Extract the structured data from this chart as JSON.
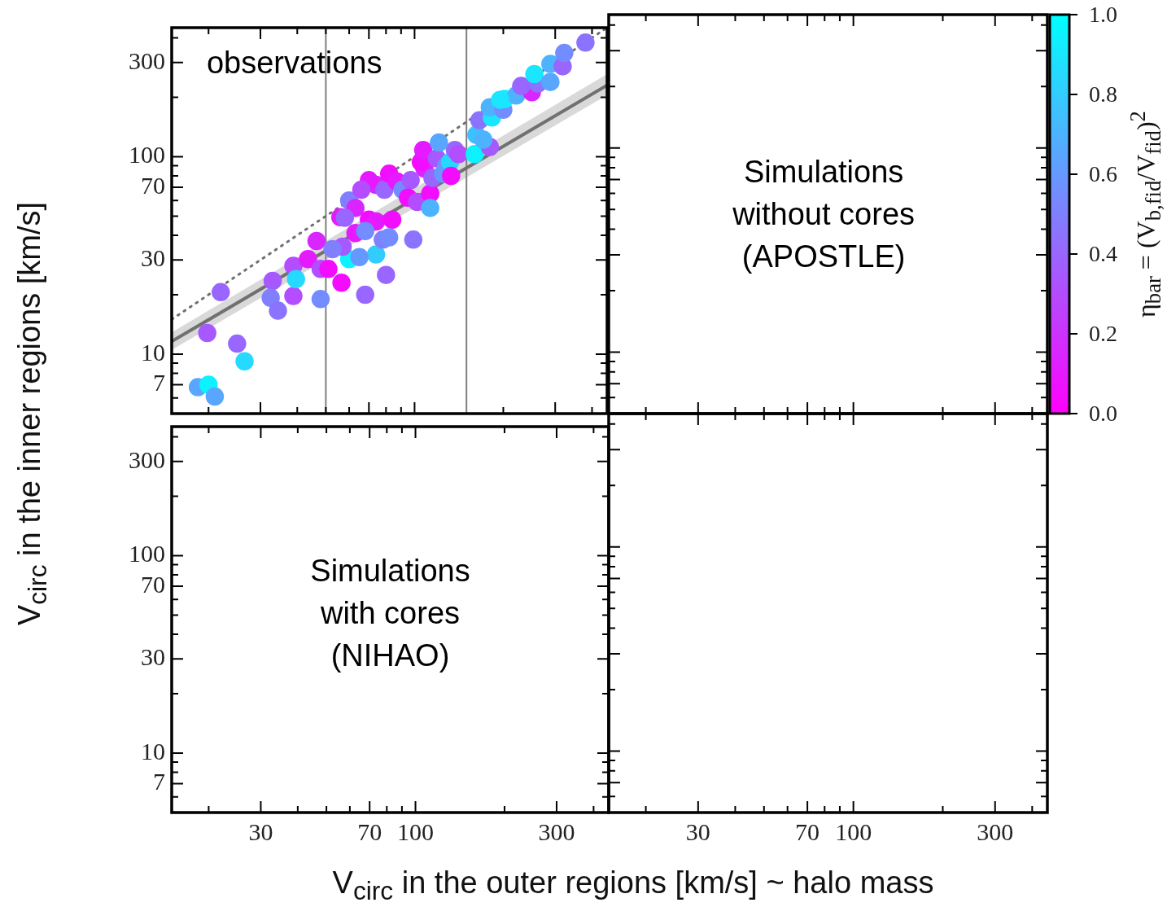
{
  "chart_data": [
    {
      "type": "scatter",
      "ylabel": "V$_{circ}$ in the inner regions [km/s]",
      "clabel": "η$_{bar}$ = (V$_{b,fid}$/V$_{fid}$)$^{2}$",
      "clim": [
        0,
        1
      ],
      "cticks": [
        {
          "value": 0,
          "label": "0.0"
        },
        0.2,
        0.4,
        0.6,
        0.8,
        {
          "value": 1,
          "label": "1.0"
        }
      ],
      "annotations": [
        "observations"
      ],
      "log": "xy",
      "tick_labels": "y",
      "grid": false,
      "xlim": [
        15,
        450
      ],
      "ylim": [
        5,
        450
      ],
      "xticks": [
        {
          "value": 20,
          "label": null
        },
        30,
        {
          "value": 40,
          "label": null
        },
        {
          "value": 50,
          "label": null
        },
        {
          "value": 60,
          "label": null
        },
        70,
        {
          "value": 80,
          "label": null
        },
        {
          "value": 90,
          "label": null
        },
        100,
        {
          "value": 200,
          "label": null
        },
        300,
        {
          "value": 400,
          "label": null
        }
      ],
      "yticks": [
        {
          "value": 6,
          "label": null
        },
        7,
        {
          "value": 8,
          "label": null
        },
        {
          "value": 9,
          "label": null
        },
        10,
        {
          "value": 20,
          "label": null
        },
        30,
        {
          "value": 40,
          "label": null
        },
        {
          "value": 50,
          "label": null
        },
        {
          "value": 60,
          "label": null
        },
        70,
        {
          "value": 80,
          "label": null
        },
        {
          "value": 90,
          "label": null
        },
        100,
        {
          "value": 200,
          "label": null
        },
        300,
        {
          "value": 400,
          "label": null
        }
      ],
      "ref_lines": [
        {
          "axis": "x",
          "value": 50,
          "color": "#808080"
        },
        {
          "axis": "x",
          "value": 150,
          "color": "#808080"
        }
      ],
      "series": [
        {
          "type": "line",
          "color": "#707070",
          "x": [
            15,
            450
          ],
          "values": [
            11.6,
            230
          ],
          "lower": [
            10.5,
            205
          ],
          "upper": [
            12.9,
            262
          ]
        },
        {
          "type": "line",
          "color": "#707070",
          "line_style": "dotted",
          "x": [
            15,
            450
          ],
          "values": [
            15,
            450
          ]
        },
        {
          "type": "scatter",
          "marker": "circle",
          "colors": [
            "#59a6ff",
            "#0df2ff",
            "#59a6ff",
            "#26d9ff",
            "#9966ff",
            "#a659ff",
            "#9966ff",
            "#a659ff",
            "#8080ff",
            "#8c73ff",
            "#b34dff",
            "#b34dff",
            "#26d9ff",
            "#e61aff",
            "#d926ff",
            "#b34dff",
            "#738cff",
            "#f20dff",
            "#f20dff",
            "#9966ff",
            "#9966ff",
            "#33ccff",
            "#0df2ff",
            "#6699ff",
            "#a659ff",
            "#8080ff",
            "#e61aff",
            "#e61aff",
            "#8080ff",
            "#d926ff",
            "#9966ff",
            "#f20dff",
            "#e61aff",
            "#738cff",
            null,
            "#f20dff",
            "#8080ff",
            "#738cff",
            "#8c73ff",
            "#d926ff",
            "#9966ff",
            "#f20dff",
            "#e61aff",
            "#738cff",
            "#a659ff",
            "#f20dff",
            "#b34dff",
            "#d926ff",
            "#f20dff",
            "#4db3ff",
            "#f20dff",
            "#e61aff",
            "#a659ff",
            "#738cff",
            "#9966ff",
            "#6699ff",
            "#26d9ff",
            "#9966ff",
            "#59a6ff",
            "#f20dff",
            "#b34dff",
            "#0df2ff",
            "#40bfff",
            "#a659ff",
            "#4db3ff",
            "#8c73ff",
            "#1ae6ff",
            "#4db3ff",
            "#738cff",
            "#0df2ff",
            "#4db3ff",
            "#1ae6ff",
            "#d926ff",
            "#9966ff",
            "#8c73ff",
            "#1ae6ff",
            "#59a6ff",
            "#4db3ff",
            "#9966ff",
            "#738cff",
            "#8c73ff",
            "#e61aff",
            "#b34dff"
          ],
          "x": [
            18.4,
            20,
            21,
            26.5,
            25,
            19.8,
            22,
            33,
            32.5,
            34.4,
            38.8,
            38.8,
            39.6,
            43.5,
            46.5,
            48,
            48,
            51,
            56.5,
            68,
            80,
            74,
            60,
            65,
            57,
            52.7,
            63,
            56,
            60,
            63,
            58,
            70,
            74,
            68,
            82,
            84,
            78,
            82,
            99,
            74,
            79,
            82,
            87,
            91,
            97,
            95,
            102,
            108,
            113,
            113,
            105,
            107,
            119,
            128,
            115,
            125,
            132,
            137,
            121,
            133,
            141,
            160,
            162,
            180,
            171,
            166,
            183,
            180,
            200,
            202,
            221,
            195,
            250,
            230,
            262,
            255,
            289,
            289,
            318,
            322,
            380,
            70,
            66
          ],
          "values": [
            6.8,
            7,
            6.1,
            9.2,
            11.3,
            12.8,
            20.6,
            23.5,
            19.3,
            16.6,
            19.7,
            28,
            24,
            30.3,
            37.4,
            27,
            19,
            27,
            23,
            20,
            25.2,
            32,
            30.3,
            31,
            35,
            34,
            41,
            49.4,
            60,
            55,
            49,
            48,
            47,
            42,
            null,
            48,
            38,
            39,
            38,
            72,
            68,
            82,
            75,
            68,
            76,
            62,
            59,
            87,
            65,
            55,
            94,
            108,
            98,
            90,
            78,
            82,
            94,
            108,
            118,
            80,
            103,
            103,
            129,
            112,
            122,
            153,
            158,
            178,
            173,
            196,
            204,
            194,
            212,
            228,
            235,
            262,
            239,
            295,
            287,
            335,
            378,
            76,
            68
          ],
          "cvalues": [
            0.65,
            0.95,
            0.65,
            0.85,
            0.4,
            0.35,
            0.4,
            0.35,
            0.5,
            0.45,
            0.3,
            0.3,
            0.85,
            0.1,
            0.15,
            0.3,
            0.55,
            0.05,
            0.05,
            0.4,
            0.4,
            0.8,
            0.95,
            0.6,
            0.35,
            0.5,
            0.1,
            0.1,
            0.5,
            0.15,
            0.4,
            0.05,
            0.1,
            0.55,
            null,
            0.05,
            0.5,
            0.55,
            0.45,
            0.15,
            0.4,
            0.05,
            0.1,
            0.55,
            0.35,
            0.05,
            0.3,
            0.15,
            0.05,
            0.7,
            0.05,
            0.1,
            0.35,
            0.55,
            0.4,
            0.6,
            0.85,
            0.4,
            0.65,
            0.05,
            0.3,
            0.95,
            0.75,
            0.35,
            0.7,
            0.45,
            0.9,
            0.7,
            0.55,
            0.95,
            0.7,
            0.9,
            0.15,
            0.4,
            0.45,
            0.9,
            0.65,
            0.7,
            0.4,
            0.55,
            0.45,
            0.1,
            0.3
          ]
        }
      ]
    },
    {
      "type": "scatter",
      "annotations": [
        "Simulations\nwithout cores\n(APOSTLE)"
      ],
      "log": "xy",
      "tick_labels": false,
      "grid": false,
      "xlim": [
        15,
        450
      ],
      "ylim": [
        5,
        450
      ],
      "xticks": [
        {
          "value": 20,
          "label": null
        },
        30,
        {
          "value": 40,
          "label": null
        },
        {
          "value": 50,
          "label": null
        },
        {
          "value": 60,
          "label": null
        },
        70,
        {
          "value": 80,
          "label": null
        },
        {
          "value": 90,
          "label": null
        },
        100,
        {
          "value": 200,
          "label": null
        },
        300,
        {
          "value": 400,
          "label": null
        }
      ],
      "yticks": [
        {
          "value": 6,
          "label": null
        },
        7,
        {
          "value": 8,
          "label": null
        },
        {
          "value": 9,
          "label": null
        },
        10,
        {
          "value": 20,
          "label": null
        },
        30,
        {
          "value": 40,
          "label": null
        },
        {
          "value": 50,
          "label": null
        },
        {
          "value": 60,
          "label": null
        },
        70,
        {
          "value": 80,
          "label": null
        },
        {
          "value": 90,
          "label": null
        },
        100,
        {
          "value": 200,
          "label": null
        },
        300,
        {
          "value": 400,
          "label": null
        }
      ]
    },
    {
      "type": "scatter",
      "xlabel": "V$_{circ}$ in the outer regions [km/s] ~ halo mass",
      "annotations": [
        "Simulations\nwith cores\n(NIHAO)"
      ],
      "log": "xy",
      "grid": false,
      "xlim": [
        15,
        450
      ],
      "ylim": [
        5,
        450
      ],
      "xticks": [
        {
          "value": 20,
          "label": null
        },
        30,
        {
          "value": 40,
          "label": null
        },
        {
          "value": 50,
          "label": null
        },
        {
          "value": 60,
          "label": null
        },
        70,
        {
          "value": 80,
          "label": null
        },
        {
          "value": 90,
          "label": null
        },
        100,
        {
          "value": 200,
          "label": null
        },
        300,
        {
          "value": 400,
          "label": null
        }
      ],
      "yticks": [
        {
          "value": 6,
          "label": null
        },
        7,
        {
          "value": 8,
          "label": null
        },
        {
          "value": 9,
          "label": null
        },
        10,
        {
          "value": 20,
          "label": null
        },
        30,
        {
          "value": 40,
          "label": null
        },
        {
          "value": 50,
          "label": null
        },
        {
          "value": 60,
          "label": null
        },
        70,
        {
          "value": 80,
          "label": null
        },
        {
          "value": 90,
          "label": null
        },
        100,
        {
          "value": 200,
          "label": null
        },
        300,
        {
          "value": 400,
          "label": null
        }
      ]
    },
    {
      "type": "scatter",
      "log": "xy",
      "tick_labels": "x",
      "grid": false,
      "xlim": [
        15,
        450
      ],
      "ylim": [
        5,
        450
      ],
      "xticks": [
        {
          "value": 20,
          "label": null
        },
        30,
        {
          "value": 40,
          "label": null
        },
        {
          "value": 50,
          "label": null
        },
        {
          "value": 60,
          "label": null
        },
        70,
        {
          "value": 80,
          "label": null
        },
        {
          "value": 90,
          "label": null
        },
        100,
        {
          "value": 200,
          "label": null
        },
        300,
        {
          "value": 400,
          "label": null
        }
      ],
      "yticks": [
        {
          "value": 6,
          "label": null
        },
        7,
        {
          "value": 8,
          "label": null
        },
        {
          "value": 9,
          "label": null
        },
        10,
        {
          "value": 20,
          "label": null
        },
        30,
        {
          "value": 40,
          "label": null
        },
        {
          "value": 50,
          "label": null
        },
        {
          "value": 60,
          "label": null
        },
        70,
        {
          "value": 80,
          "label": null
        },
        {
          "value": 90,
          "label": null
        },
        100,
        {
          "value": 200,
          "label": null
        },
        300,
        {
          "value": 400,
          "label": null
        }
      ]
    }
  ]
}
